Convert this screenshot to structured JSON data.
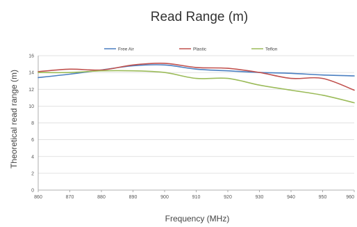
{
  "chart_data": {
    "type": "line",
    "title": "Read Range (m)",
    "xlabel": "Frequency (MHz)",
    "ylabel": "Theoretical read range (m)",
    "xlim": [
      860,
      960
    ],
    "ylim": [
      0,
      16
    ],
    "x_ticks": [
      860,
      870,
      880,
      890,
      900,
      910,
      920,
      930,
      940,
      950,
      960
    ],
    "y_ticks": [
      0,
      2,
      4,
      6,
      8,
      10,
      12,
      14,
      16
    ],
    "grid": true,
    "legend_position": "top",
    "x": [
      860,
      870,
      880,
      890,
      900,
      910,
      920,
      930,
      940,
      950,
      960
    ],
    "series": [
      {
        "name": "Free Air",
        "color": "#4a7fc1",
        "values": [
          13.4,
          13.8,
          14.3,
          14.8,
          14.9,
          14.4,
          14.2,
          14.0,
          13.9,
          13.7,
          13.6
        ]
      },
      {
        "name": "Plastic",
        "color": "#c0504d",
        "values": [
          14.1,
          14.4,
          14.3,
          14.9,
          15.1,
          14.6,
          14.5,
          14.0,
          13.3,
          13.3,
          11.9
        ]
      },
      {
        "name": "Teflon",
        "color": "#9bbb59",
        "values": [
          14.0,
          14.0,
          14.2,
          14.2,
          14.0,
          13.3,
          13.3,
          12.5,
          11.9,
          11.3,
          10.4
        ]
      }
    ]
  }
}
